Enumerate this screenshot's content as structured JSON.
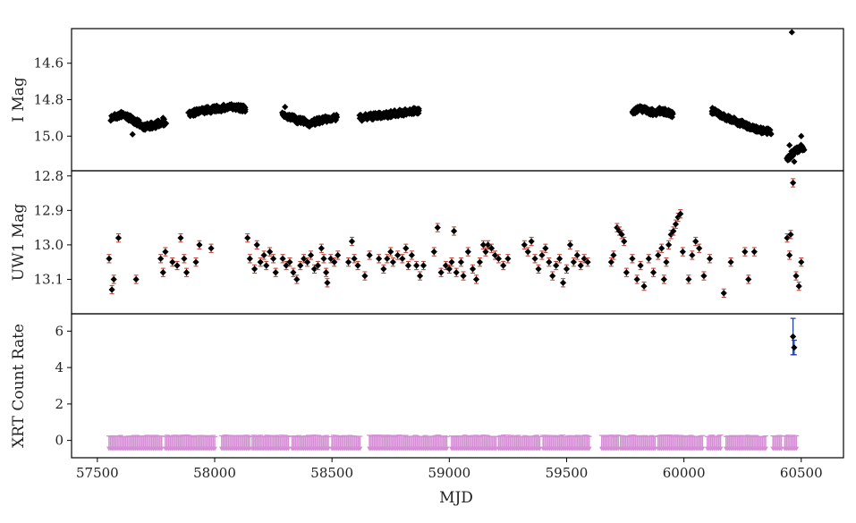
{
  "chart_data": {
    "type": "scatter",
    "xlabel": "MJD",
    "xlim": [
      57390,
      60680
    ],
    "xticks": [
      57500,
      58000,
      58500,
      59000,
      59500,
      60000,
      60500
    ],
    "colors": {
      "marker": "#000000",
      "uw1_error": "#c0392b",
      "xrt_error": "#1f3a93",
      "xrt_limit": "#d58fd5"
    },
    "panels": [
      {
        "id": "imag",
        "ylabel": "I Mag",
        "ylim": [
          14.41,
          15.19
        ],
        "inverted": true,
        "yticks": [
          14.6,
          14.8,
          15.0
        ],
        "ytick_labels": [
          "14.6",
          "14.8",
          "15.0"
        ],
        "segments": [
          {
            "x0": 57560,
            "x1": 57790,
            "y": [
              14.9,
              14.88,
              14.91,
              14.95,
              14.94,
              14.92
            ]
          },
          {
            "x0": 57890,
            "x1": 58130,
            "y": [
              14.88,
              14.86,
              14.85,
              14.84,
              14.85
            ]
          },
          {
            "x0": 58290,
            "x1": 58520,
            "y": [
              14.88,
              14.91,
              14.93,
              14.91,
              14.9
            ]
          },
          {
            "x0": 58620,
            "x1": 58870,
            "y": [
              14.9,
              14.89,
              14.88,
              14.87,
              14.86
            ]
          },
          {
            "x0": 59780,
            "x1": 59950,
            "y": [
              14.86,
              14.85,
              14.87,
              14.86,
              14.88
            ]
          },
          {
            "x0": 60120,
            "x1": 60370,
            "y": [
              14.86,
              14.9,
              14.93,
              14.96,
              14.98
            ]
          },
          {
            "x0": 60440,
            "x1": 60510,
            "y": [
              15.12,
              15.1,
              15.08,
              15.07,
              15.06
            ]
          }
        ],
        "points": [
          {
            "x": 57575,
            "y": 14.89
          },
          {
            "x": 57650,
            "y": 14.99
          },
          {
            "x": 57780,
            "y": 14.9
          },
          {
            "x": 58300,
            "y": 14.84
          },
          {
            "x": 58870,
            "y": 14.86
          },
          {
            "x": 60460,
            "y": 14.43
          },
          {
            "x": 60450,
            "y": 15.05
          },
          {
            "x": 60500,
            "y": 15.0
          },
          {
            "x": 60470,
            "y": 15.14
          }
        ]
      },
      {
        "id": "uw1",
        "ylabel": "UW1 Mag",
        "ylim": [
          12.785,
          13.2
        ],
        "inverted": true,
        "yticks": [
          12.8,
          12.9,
          13.0,
          13.1
        ],
        "ytick_labels": [
          "12.8",
          "12.9",
          "13.0",
          "13.1"
        ],
        "points": [
          {
            "x": 57550,
            "y": 13.04
          },
          {
            "x": 57562,
            "y": 13.13
          },
          {
            "x": 57570,
            "y": 13.1
          },
          {
            "x": 57590,
            "y": 12.98
          },
          {
            "x": 57665,
            "y": 13.1
          },
          {
            "x": 57770,
            "y": 13.04
          },
          {
            "x": 57780,
            "y": 13.08
          },
          {
            "x": 57790,
            "y": 13.02
          },
          {
            "x": 57820,
            "y": 13.05
          },
          {
            "x": 57840,
            "y": 13.06
          },
          {
            "x": 57855,
            "y": 12.98
          },
          {
            "x": 57870,
            "y": 13.04
          },
          {
            "x": 57880,
            "y": 13.08
          },
          {
            "x": 57920,
            "y": 13.05
          },
          {
            "x": 57935,
            "y": 13.0
          },
          {
            "x": 57985,
            "y": 13.01
          },
          {
            "x": 58140,
            "y": 12.98
          },
          {
            "x": 58150,
            "y": 13.04
          },
          {
            "x": 58170,
            "y": 13.07
          },
          {
            "x": 58180,
            "y": 13.0
          },
          {
            "x": 58195,
            "y": 13.05
          },
          {
            "x": 58210,
            "y": 13.03
          },
          {
            "x": 58220,
            "y": 13.06
          },
          {
            "x": 58235,
            "y": 13.02
          },
          {
            "x": 58250,
            "y": 13.04
          },
          {
            "x": 58260,
            "y": 13.08
          },
          {
            "x": 58290,
            "y": 13.04
          },
          {
            "x": 58305,
            "y": 13.06
          },
          {
            "x": 58320,
            "y": 13.05
          },
          {
            "x": 58335,
            "y": 13.08
          },
          {
            "x": 58350,
            "y": 13.1
          },
          {
            "x": 58365,
            "y": 13.06
          },
          {
            "x": 58380,
            "y": 13.04
          },
          {
            "x": 58395,
            "y": 13.05
          },
          {
            "x": 58410,
            "y": 13.03
          },
          {
            "x": 58425,
            "y": 13.07
          },
          {
            "x": 58440,
            "y": 13.06
          },
          {
            "x": 58455,
            "y": 13.01
          },
          {
            "x": 58465,
            "y": 13.04
          },
          {
            "x": 58475,
            "y": 13.08
          },
          {
            "x": 58480,
            "y": 13.11
          },
          {
            "x": 58495,
            "y": 13.04
          },
          {
            "x": 58510,
            "y": 13.05
          },
          {
            "x": 58525,
            "y": 13.03
          },
          {
            "x": 58570,
            "y": 13.05
          },
          {
            "x": 58585,
            "y": 12.99
          },
          {
            "x": 58595,
            "y": 13.04
          },
          {
            "x": 58610,
            "y": 13.06
          },
          {
            "x": 58640,
            "y": 13.09
          },
          {
            "x": 58660,
            "y": 13.03
          },
          {
            "x": 58700,
            "y": 13.04
          },
          {
            "x": 58720,
            "y": 13.07
          },
          {
            "x": 58735,
            "y": 13.04
          },
          {
            "x": 58750,
            "y": 13.02
          },
          {
            "x": 58760,
            "y": 13.05
          },
          {
            "x": 58780,
            "y": 13.03
          },
          {
            "x": 58800,
            "y": 13.04
          },
          {
            "x": 58815,
            "y": 13.01
          },
          {
            "x": 58825,
            "y": 13.06
          },
          {
            "x": 58840,
            "y": 13.03
          },
          {
            "x": 58860,
            "y": 13.06
          },
          {
            "x": 58875,
            "y": 13.09
          },
          {
            "x": 58890,
            "y": 13.06
          },
          {
            "x": 58935,
            "y": 13.02
          },
          {
            "x": 58950,
            "y": 12.95
          },
          {
            "x": 58965,
            "y": 13.08
          },
          {
            "x": 58985,
            "y": 13.06
          },
          {
            "x": 59000,
            "y": 13.07
          },
          {
            "x": 59010,
            "y": 13.05
          },
          {
            "x": 59020,
            "y": 12.96
          },
          {
            "x": 59030,
            "y": 13.08
          },
          {
            "x": 59050,
            "y": 13.05
          },
          {
            "x": 59060,
            "y": 13.09
          },
          {
            "x": 59080,
            "y": 13.02
          },
          {
            "x": 59100,
            "y": 13.07
          },
          {
            "x": 59115,
            "y": 13.1
          },
          {
            "x": 59130,
            "y": 13.05
          },
          {
            "x": 59145,
            "y": 13.0
          },
          {
            "x": 59155,
            "y": 13.02
          },
          {
            "x": 59165,
            "y": 13.0
          },
          {
            "x": 59180,
            "y": 13.01
          },
          {
            "x": 59195,
            "y": 13.03
          },
          {
            "x": 59210,
            "y": 13.04
          },
          {
            "x": 59230,
            "y": 13.06
          },
          {
            "x": 59250,
            "y": 13.04
          },
          {
            "x": 59320,
            "y": 13.0
          },
          {
            "x": 59335,
            "y": 13.02
          },
          {
            "x": 59350,
            "y": 12.99
          },
          {
            "x": 59365,
            "y": 13.04
          },
          {
            "x": 59380,
            "y": 13.07
          },
          {
            "x": 59395,
            "y": 13.03
          },
          {
            "x": 59410,
            "y": 13.01
          },
          {
            "x": 59425,
            "y": 13.05
          },
          {
            "x": 59440,
            "y": 13.09
          },
          {
            "x": 59455,
            "y": 13.06
          },
          {
            "x": 59470,
            "y": 13.04
          },
          {
            "x": 59485,
            "y": 13.11
          },
          {
            "x": 59500,
            "y": 13.07
          },
          {
            "x": 59515,
            "y": 13.0
          },
          {
            "x": 59530,
            "y": 13.05
          },
          {
            "x": 59545,
            "y": 13.03
          },
          {
            "x": 59560,
            "y": 13.06
          },
          {
            "x": 59575,
            "y": 13.04
          },
          {
            "x": 59590,
            "y": 13.05
          },
          {
            "x": 59690,
            "y": 13.05
          },
          {
            "x": 59700,
            "y": 13.03
          },
          {
            "x": 59715,
            "y": 12.95
          },
          {
            "x": 59725,
            "y": 12.96
          },
          {
            "x": 59735,
            "y": 12.97
          },
          {
            "x": 59745,
            "y": 12.99
          },
          {
            "x": 59755,
            "y": 13.08
          },
          {
            "x": 59780,
            "y": 13.04
          },
          {
            "x": 59800,
            "y": 13.1
          },
          {
            "x": 59815,
            "y": 13.06
          },
          {
            "x": 59830,
            "y": 13.12
          },
          {
            "x": 59850,
            "y": 13.04
          },
          {
            "x": 59870,
            "y": 13.08
          },
          {
            "x": 59890,
            "y": 13.03
          },
          {
            "x": 59905,
            "y": 13.01
          },
          {
            "x": 59915,
            "y": 13.1
          },
          {
            "x": 59925,
            "y": 13.05
          },
          {
            "x": 59935,
            "y": 13.0
          },
          {
            "x": 59945,
            "y": 12.97
          },
          {
            "x": 59955,
            "y": 12.96
          },
          {
            "x": 59965,
            "y": 12.94
          },
          {
            "x": 59975,
            "y": 12.92
          },
          {
            "x": 59985,
            "y": 12.91
          },
          {
            "x": 59995,
            "y": 13.02
          },
          {
            "x": 60020,
            "y": 13.1
          },
          {
            "x": 60035,
            "y": 13.03
          },
          {
            "x": 60050,
            "y": 12.99
          },
          {
            "x": 60065,
            "y": 13.01
          },
          {
            "x": 60085,
            "y": 13.09
          },
          {
            "x": 60110,
            "y": 13.04
          },
          {
            "x": 60170,
            "y": 13.14
          },
          {
            "x": 60200,
            "y": 13.05
          },
          {
            "x": 60260,
            "y": 13.02
          },
          {
            "x": 60275,
            "y": 13.1
          },
          {
            "x": 60300,
            "y": 13.02
          },
          {
            "x": 60440,
            "y": 12.98
          },
          {
            "x": 60450,
            "y": 13.03
          },
          {
            "x": 60455,
            "y": 12.97
          },
          {
            "x": 60465,
            "y": 12.82
          },
          {
            "x": 60478,
            "y": 13.09
          },
          {
            "x": 60490,
            "y": 13.12
          },
          {
            "x": 60500,
            "y": 13.05
          }
        ]
      },
      {
        "id": "xrt",
        "ylabel": "XRT Count Rate",
        "ylim": [
          -0.95,
          6.95
        ],
        "inverted": false,
        "yticks": [
          0,
          2,
          4,
          6
        ],
        "ytick_labels": [
          "0",
          "2",
          "4",
          "6"
        ],
        "limits_value": 0,
        "limit_ranges": [
          [
            57550,
            57780
          ],
          [
            57790,
            58000
          ],
          [
            58030,
            58150
          ],
          [
            58160,
            58320
          ],
          [
            58330,
            58490
          ],
          [
            58500,
            58620
          ],
          [
            58660,
            58900
          ],
          [
            58905,
            58990
          ],
          [
            59010,
            59200
          ],
          [
            59210,
            59390
          ],
          [
            59400,
            59600
          ],
          [
            59650,
            59720
          ],
          [
            59730,
            59880
          ],
          [
            59890,
            60080
          ],
          [
            60100,
            60160
          ],
          [
            60180,
            60350
          ],
          [
            60380,
            60420
          ],
          [
            60430,
            60480
          ]
        ],
        "detections": [
          {
            "x": 60465,
            "y": 5.7,
            "err": 1.0
          },
          {
            "x": 60470,
            "y": 5.1,
            "err": 0.4
          }
        ]
      }
    ],
    "xtick_labels": [
      "57500",
      "58000",
      "58500",
      "59000",
      "59500",
      "60000",
      "60500"
    ]
  }
}
